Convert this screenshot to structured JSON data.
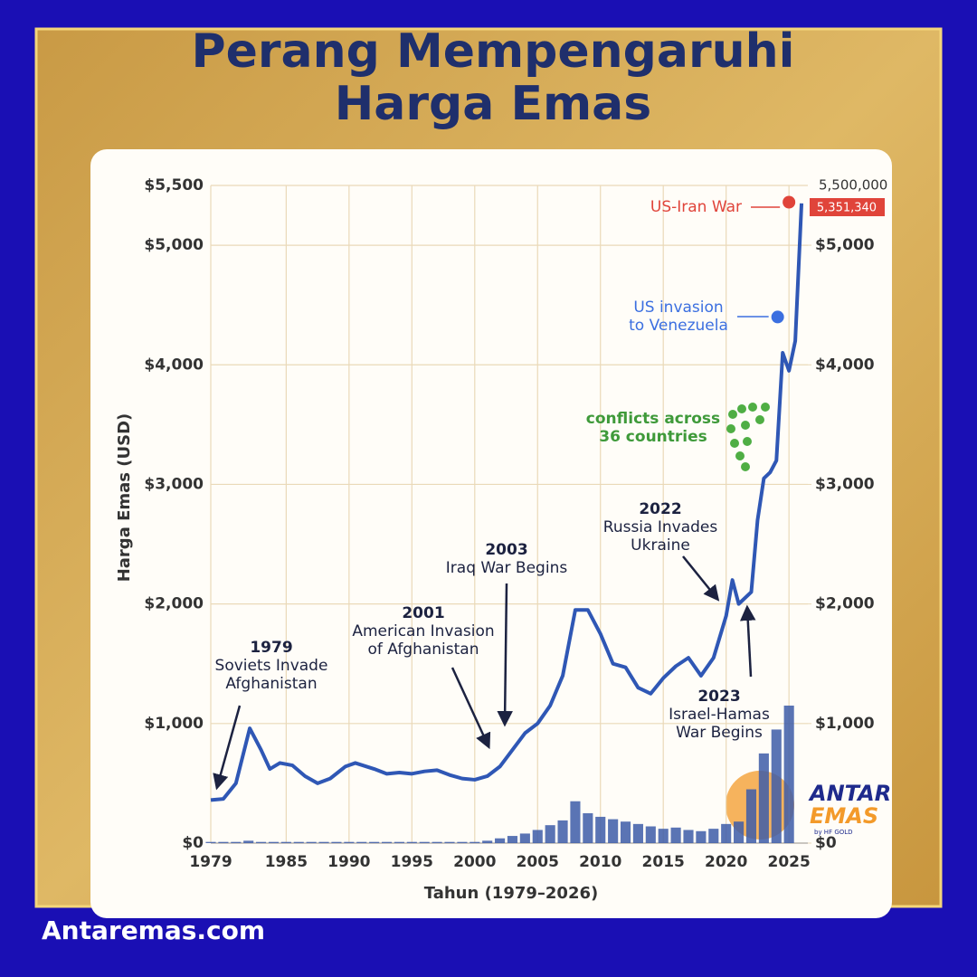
{
  "chart_data": {
    "type": "line",
    "title": "Perang Mempengaruhi Harga Emas",
    "y_label": "Harga Emas (USD)",
    "x_label": "Tahun (1979–2026)",
    "xlim": [
      1979,
      2026.5
    ],
    "xticks": [
      1979,
      1985,
      1990,
      1995,
      2000,
      2005,
      2010,
      2015,
      2020,
      2025
    ],
    "ylim": [
      0,
      5500
    ],
    "yticks": [
      {
        "value": 0,
        "label": "$0"
      },
      {
        "value": 1000,
        "label": "$1,000"
      },
      {
        "value": 2000,
        "label": "$2,000"
      },
      {
        "value": 3000,
        "label": "$3,000"
      },
      {
        "value": 4000,
        "label": "$4,000"
      },
      {
        "value": 5000,
        "label": "$5,000"
      },
      {
        "value": 5500,
        "label": "$5,500"
      }
    ],
    "y2lim": [
      0,
      5500
    ],
    "y2ticks": [
      {
        "value": 0,
        "label": "$0"
      },
      {
        "value": 1000,
        "label": "$1,000"
      },
      {
        "value": 2000,
        "label": "$2,000"
      },
      {
        "value": 3000,
        "label": "$3,000"
      },
      {
        "value": 4000,
        "label": "$4,000"
      },
      {
        "value": 5000,
        "label": "$5,000"
      }
    ],
    "y2_top_label": "5,500,000",
    "grid": true,
    "series": [
      {
        "type": "line",
        "color": "#2f57b5",
        "x": [
          1979,
          1980,
          1981,
          1982.1,
          1983,
          1983.7,
          1984.5,
          1985.5,
          1986.5,
          1987.5,
          1988.5,
          1989.7,
          1990.5,
          1992,
          1993,
          1994,
          1995,
          1996,
          1997,
          1998,
          1999,
          2000,
          2001,
          2002,
          2003,
          2004,
          2005,
          2006,
          2007,
          2008,
          2009,
          2010,
          2011,
          2012,
          2013,
          2014,
          2015,
          2016,
          2017,
          2018,
          2019,
          2020,
          2020.5,
          2021,
          2022,
          2022.5,
          2023,
          2023.5,
          2024,
          2024.5,
          2025,
          2025.5,
          2026
        ],
        "values": [
          360,
          370,
          500,
          960,
          780,
          620,
          670,
          650,
          560,
          500,
          540,
          640,
          670,
          620,
          580,
          590,
          580,
          600,
          610,
          570,
          540,
          530,
          560,
          640,
          780,
          920,
          1000,
          1150,
          1400,
          1950,
          1950,
          1750,
          1500,
          1470,
          1300,
          1250,
          1380,
          1480,
          1550,
          1400,
          1550,
          1900,
          2200,
          2000,
          2100,
          2700,
          3050,
          3100,
          3200,
          4100,
          3950,
          4200,
          5350
        ]
      },
      {
        "type": "bar",
        "color": "#3d5ca8",
        "x": [
          1979,
          1980,
          1981,
          1982,
          1983,
          1984,
          1985,
          1986,
          1987,
          1988,
          1989,
          1990,
          1991,
          1992,
          1993,
          1994,
          1995,
          1996,
          1997,
          1998,
          1999,
          2000,
          2001,
          2002,
          2003,
          2004,
          2005,
          2006,
          2007,
          2008,
          2009,
          2010,
          2011,
          2012,
          2013,
          2014,
          2015,
          2016,
          2017,
          2018,
          2019,
          2020,
          2021,
          2022,
          2023,
          2024,
          2025
        ],
        "values": [
          10,
          10,
          10,
          20,
          10,
          10,
          10,
          10,
          10,
          10,
          10,
          10,
          10,
          10,
          10,
          10,
          10,
          10,
          10,
          10,
          10,
          10,
          20,
          40,
          60,
          80,
          110,
          150,
          190,
          350,
          250,
          220,
          200,
          180,
          160,
          140,
          120,
          130,
          110,
          100,
          120,
          160,
          180,
          450,
          750,
          950,
          1150
        ]
      }
    ],
    "annotations": [
      {
        "label": "1979",
        "text": [
          "Soviets Invade",
          "Afghanistan"
        ]
      },
      {
        "label": "2001",
        "text": [
          "American Invasion",
          "of Afghanistan"
        ]
      },
      {
        "label": "2003",
        "text": [
          "Iraq War Begins"
        ]
      },
      {
        "label": "2022",
        "text": [
          "Russia Invades",
          "Ukraine"
        ]
      },
      {
        "label": "2023",
        "text": [
          "Israel-Hamas",
          "War Begins"
        ]
      },
      {
        "text": [
          "conflicts across",
          "36 countries"
        ],
        "color": "#3f9a3a"
      },
      {
        "text": [
          "US invasion",
          "to Venezuela"
        ],
        "x": 2024.1,
        "value": 4400,
        "color": "#3b6fe0"
      },
      {
        "text": [
          "US-Iran War"
        ],
        "x": 2025,
        "value": 5360,
        "color": "#e0443a",
        "badge": "5,351,340"
      }
    ]
  },
  "brand": {
    "name_top": "ANTAR",
    "name_bottom": "EMAS",
    "tagline": "by HF GOLD"
  },
  "footer": "Antaremas.com"
}
